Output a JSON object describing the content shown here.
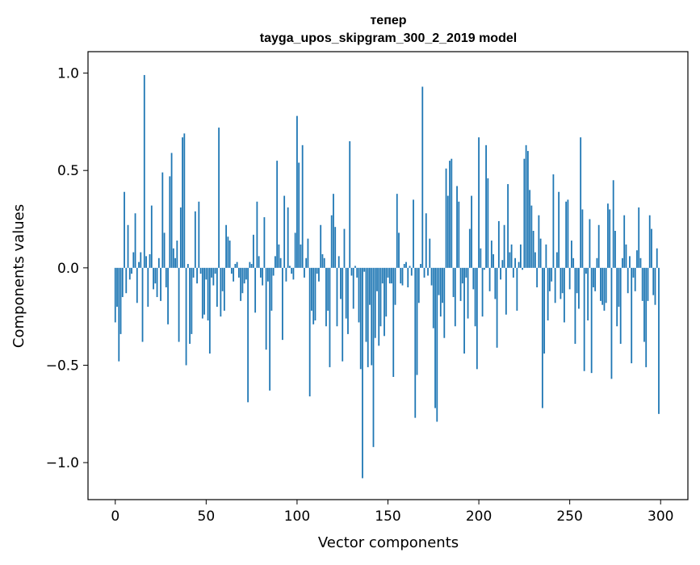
{
  "chart_data": {
    "type": "bar",
    "title_line1": "тепер",
    "title_line2": "tayga_upos_skipgram_300_2_2019 model",
    "xlabel": "Vector components",
    "ylabel": "Components values",
    "xlim": [
      -15,
      315
    ],
    "ylim": [
      -1.19,
      1.11
    ],
    "xticks": [
      0,
      50,
      100,
      150,
      200,
      250,
      300
    ],
    "xtick_labels": [
      "0",
      "50",
      "100",
      "150",
      "200",
      "250",
      "300"
    ],
    "yticks": [
      1.0,
      0.5,
      0.0,
      -0.5,
      -1.0
    ],
    "ytick_labels": [
      "1.0",
      "0.5",
      "0.0",
      "−0.5",
      "−1.0"
    ],
    "bar_color": "#1f77b4",
    "grid": false,
    "values": [
      -0.28,
      -0.2,
      -0.48,
      -0.34,
      -0.15,
      0.39,
      -0.13,
      0.22,
      -0.06,
      -0.03,
      0.08,
      0.28,
      -0.18,
      0.03,
      0.08,
      -0.38,
      0.99,
      0.06,
      -0.2,
      0.07,
      0.32,
      -0.11,
      -0.08,
      -0.15,
      0.05,
      -0.17,
      0.49,
      0.18,
      -0.1,
      -0.29,
      0.47,
      0.59,
      0.1,
      0.05,
      0.14,
      -0.38,
      0.31,
      0.67,
      0.69,
      -0.5,
      0.02,
      -0.39,
      -0.34,
      -0.05,
      0.29,
      -0.08,
      0.34,
      -0.03,
      -0.26,
      -0.24,
      -0.06,
      -0.27,
      -0.44,
      -0.05,
      -0.09,
      -0.03,
      -0.2,
      0.72,
      -0.25,
      -0.12,
      -0.22,
      0.22,
      0.16,
      0.14,
      -0.03,
      -0.07,
      0.02,
      0.03,
      -0.05,
      -0.17,
      -0.13,
      -0.08,
      -0.06,
      -0.69,
      0.03,
      0.02,
      0.17,
      -0.23,
      0.34,
      0.06,
      -0.05,
      -0.09,
      0.26,
      -0.42,
      -0.07,
      -0.63,
      -0.22,
      -0.04,
      0.06,
      0.55,
      0.12,
      0.05,
      -0.37,
      0.37,
      -0.07,
      0.31,
      0.01,
      -0.03,
      -0.06,
      0.18,
      0.78,
      0.54,
      0.12,
      0.63,
      -0.05,
      0.05,
      0.15,
      -0.66,
      -0.22,
      -0.29,
      -0.27,
      -0.03,
      -0.07,
      0.22,
      0.07,
      0.05,
      -0.3,
      -0.22,
      -0.51,
      0.27,
      0.38,
      0.21,
      -0.3,
      0.06,
      -0.16,
      -0.48,
      0.2,
      -0.26,
      -0.34,
      0.65,
      -0.04,
      -0.21,
      0.01,
      -0.05,
      -0.28,
      -0.52,
      -1.08,
      -0.02,
      -0.38,
      -0.51,
      -0.19,
      -0.5,
      -0.92,
      -0.36,
      -0.12,
      -0.4,
      -0.3,
      -0.08,
      -0.35,
      -0.25,
      -0.05,
      -0.08,
      -0.08,
      -0.56,
      -0.19,
      0.38,
      0.18,
      -0.08,
      -0.09,
      0.02,
      0.03,
      -0.1,
      0.01,
      -0.04,
      0.35,
      -0.77,
      -0.55,
      -0.18,
      0.02,
      0.93,
      -0.05,
      0.28,
      -0.04,
      0.15,
      -0.09,
      -0.31,
      -0.72,
      -0.79,
      -0.14,
      -0.25,
      -0.18,
      -0.36,
      0.51,
      0.37,
      0.55,
      0.56,
      -0.15,
      -0.3,
      0.42,
      0.34,
      -0.17,
      -0.08,
      -0.44,
      -0.05,
      -0.26,
      0.2,
      0.37,
      -0.11,
      -0.3,
      -0.52,
      0.67,
      0.1,
      -0.25,
      -0.01,
      0.63,
      0.46,
      -0.12,
      0.14,
      0.07,
      -0.16,
      -0.41,
      0.24,
      -0.06,
      0.04,
      0.22,
      -0.24,
      0.43,
      0.08,
      0.12,
      -0.05,
      0.05,
      -0.22,
      0.03,
      0.12,
      -0.01,
      0.56,
      0.63,
      0.6,
      0.4,
      0.32,
      0.19,
      0.08,
      -0.1,
      0.27,
      0.15,
      -0.72,
      -0.44,
      0.12,
      -0.27,
      -0.12,
      -0.07,
      0.48,
      -0.18,
      0.08,
      0.39,
      -0.16,
      -0.13,
      -0.28,
      0.34,
      0.35,
      -0.11,
      0.14,
      0.05,
      -0.39,
      -0.13,
      -0.21,
      0.67,
      0.3,
      -0.53,
      -0.03,
      -0.27,
      0.25,
      -0.54,
      -0.1,
      -0.12,
      0.05,
      0.22,
      -0.17,
      -0.19,
      -0.22,
      -0.18,
      0.33,
      0.3,
      -0.57,
      0.45,
      0.19,
      -0.3,
      -0.2,
      -0.39,
      0.05,
      0.27,
      0.12,
      -0.13,
      0.06,
      -0.49,
      -0.05,
      -0.12,
      0.09,
      0.31,
      0.05,
      -0.17,
      -0.38,
      -0.51,
      -0.17,
      0.27,
      0.2,
      -0.14,
      -0.19,
      0.1,
      -0.75
    ]
  }
}
